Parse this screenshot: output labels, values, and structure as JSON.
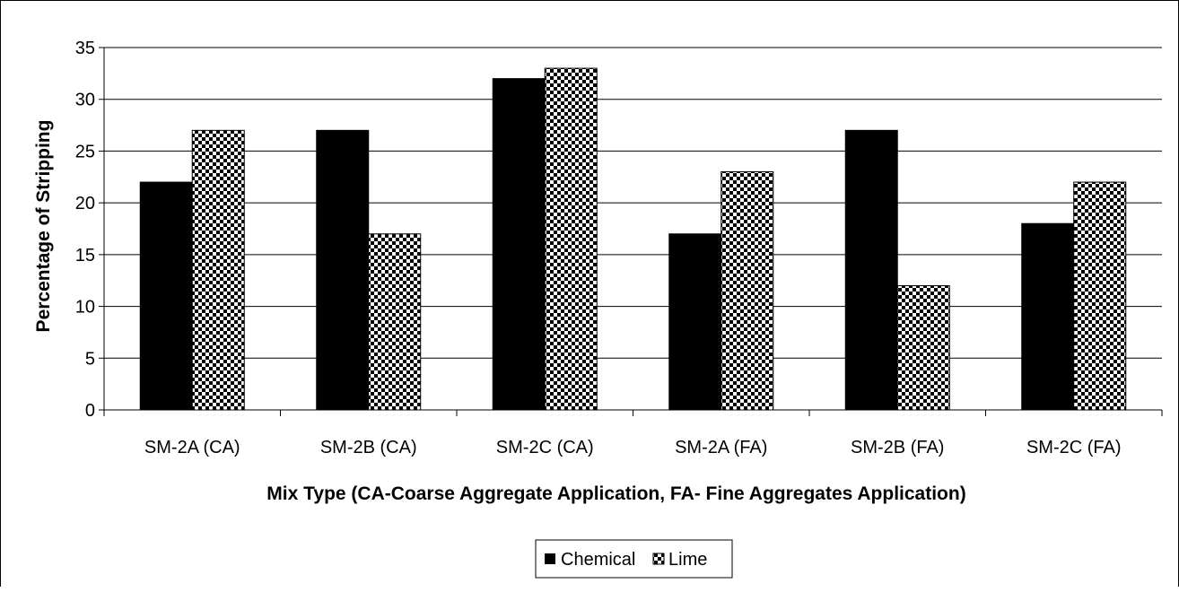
{
  "chart_data": {
    "type": "bar",
    "categories": [
      "SM-2A (CA)",
      "SM-2B (CA)",
      "SM-2C (CA)",
      "SM-2A (FA)",
      "SM-2B (FA)",
      "SM-2C (FA)"
    ],
    "series": [
      {
        "name": "Chemical",
        "values": [
          22,
          27,
          32,
          17,
          27,
          18
        ],
        "fill": "solid",
        "color": "#000000"
      },
      {
        "name": "Lime",
        "values": [
          27,
          17,
          33,
          23,
          12,
          22
        ],
        "fill": "checkerboard",
        "color": "#000000"
      }
    ],
    "xlabel": "Mix Type (CA-Coarse Aggregate Application, FA- Fine Aggregates Application)",
    "ylabel": "Percentage of Stripping",
    "ylim": [
      0,
      35
    ],
    "yticks": [
      "0",
      "5",
      "10",
      "15",
      "20",
      "25",
      "30",
      "35"
    ],
    "grid": true,
    "legend_position": "bottom-center"
  }
}
